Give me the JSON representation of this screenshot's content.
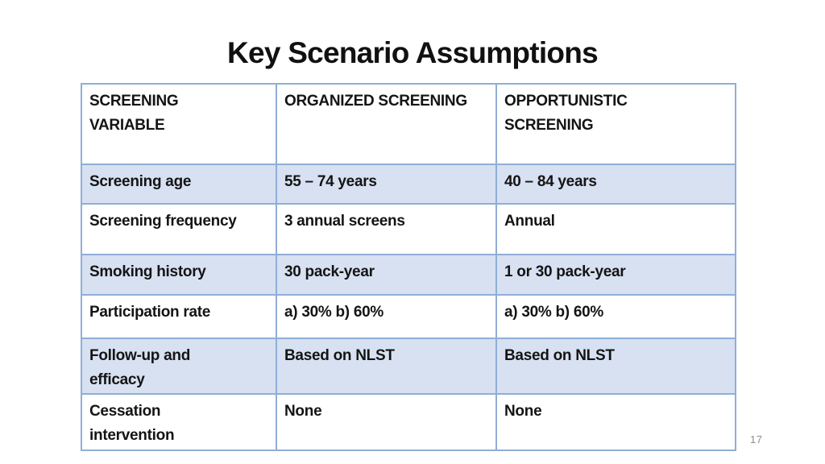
{
  "title": "Key Scenario Assumptions",
  "page_number": "17",
  "colors": {
    "table_border": "#8FAED6",
    "row_shade": "#D8E1F1",
    "title_text": "#111111",
    "body_text": "#141414",
    "page_number_text": "#8A8F96"
  },
  "table": {
    "headers": [
      "SCREENING\nVARIABLE",
      "ORGANIZED SCREENING",
      "OPPORTUNISTIC\nSCREENING"
    ],
    "rows": [
      [
        "Screening age",
        "55 – 74 years",
        "40 – 84 years"
      ],
      [
        "Screening frequency",
        "3 annual screens",
        "Annual"
      ],
      [
        "Smoking history",
        "30 pack-year",
        "1 or 30 pack-year"
      ],
      [
        "Participation rate",
        "a) 30% b) 60%",
        "a) 30% b) 60%"
      ],
      [
        "Follow-up and\nefficacy",
        "Based on NLST",
        "Based on NLST"
      ],
      [
        "Cessation\nintervention",
        "None",
        "None"
      ]
    ]
  }
}
